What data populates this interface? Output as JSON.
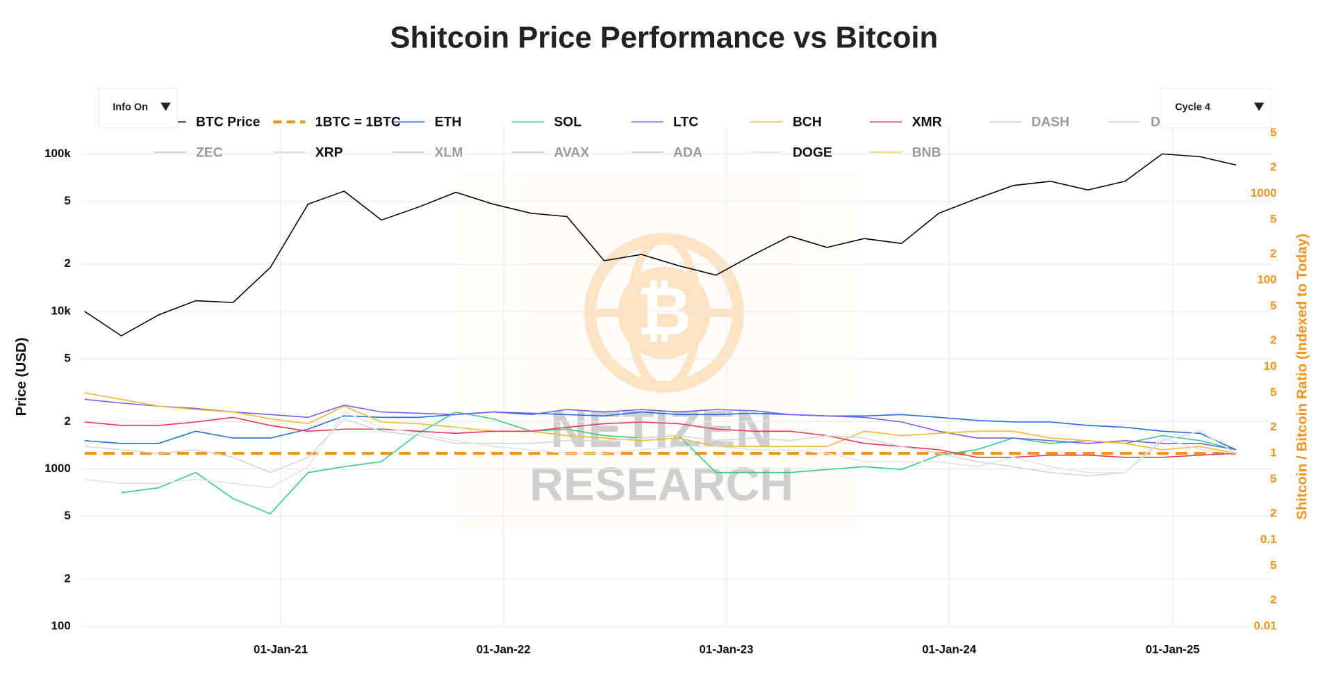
{
  "menus": [
    {
      "label": "Info On"
    },
    {
      "label": "Cycle 4"
    }
  ],
  "watermark": [
    "NETIZEN",
    "RESEARCH"
  ],
  "chart_data": {
    "type": "line",
    "title": "Shitcoin Price Performance vs Bitcoin",
    "ylabel": "Price (USD)",
    "y2label": "Shitcoin / Bitcoin Ratio (Indexed to Today)",
    "log_y": true,
    "log_y2": true,
    "grid": true,
    "x": [
      "2020-02-15",
      "2020-04-15",
      "2020-06-15",
      "2020-08-15",
      "2020-10-15",
      "2020-12-15",
      "2021-02-15",
      "2021-04-15",
      "2021-06-15",
      "2021-08-15",
      "2021-10-15",
      "2021-12-15",
      "2022-02-15",
      "2022-04-15",
      "2022-06-15",
      "2022-08-15",
      "2022-10-15",
      "2022-12-15",
      "2023-02-15",
      "2023-04-15",
      "2023-06-15",
      "2023-08-15",
      "2023-10-15",
      "2023-12-15",
      "2024-02-15",
      "2024-04-15",
      "2024-06-15",
      "2024-08-15",
      "2024-10-15",
      "2024-12-15",
      "2025-02-15",
      "2025-04-15"
    ],
    "xlim": [
      "2020-02-10",
      "2025-06-15"
    ],
    "xticks": [
      {
        "value": "2021-01-01",
        "label": "01-Jan-21"
      },
      {
        "value": "2022-01-01",
        "label": "01-Jan-22"
      },
      {
        "value": "2023-01-01",
        "label": "01-Jan-23"
      },
      {
        "value": "2024-01-01",
        "label": "01-Jan-24"
      },
      {
        "value": "2025-01-01",
        "label": "01-Jan-25"
      }
    ],
    "ylim": [
      100,
      150000
    ],
    "yticks": [
      100,
      {
        "value": 200,
        "label": "2"
      },
      {
        "value": 500,
        "label": "5"
      },
      1000,
      {
        "value": 2000,
        "label": "2"
      },
      {
        "value": 5000,
        "label": "5"
      },
      {
        "value": 10000,
        "label": "10k"
      },
      {
        "value": 20000,
        "label": "2"
      },
      {
        "value": 50000,
        "label": "5"
      },
      {
        "value": 100000,
        "label": "100k"
      }
    ],
    "y2lim": [
      0.01,
      6000
    ],
    "y2ticks": [
      0.01,
      {
        "value": 0.02,
        "label": "2"
      },
      {
        "value": 0.05,
        "label": "5"
      },
      0.1,
      {
        "value": 0.2,
        "label": "2"
      },
      {
        "value": 0.5,
        "label": "5"
      },
      1,
      2,
      5,
      10,
      {
        "value": 20,
        "label": "2"
      },
      {
        "value": 50,
        "label": "5"
      },
      100,
      {
        "value": 200,
        "label": "2"
      },
      {
        "value": 500,
        "label": "5"
      },
      1000,
      {
        "value": 2000,
        "label": "2"
      },
      {
        "value": 5000,
        "label": "5"
      }
    ],
    "series": [
      {
        "name": "BTC Price",
        "color": "#000000",
        "axis": "y",
        "values": [
          10000,
          7000,
          9500,
          11700,
          11400,
          19000,
          48000,
          58000,
          38000,
          46000,
          57000,
          48000,
          42000,
          40000,
          21000,
          23000,
          19500,
          17000,
          23000,
          30000,
          25500,
          29000,
          27000,
          42000,
          52000,
          63000,
          67000,
          59000,
          67000,
          100000,
          96000,
          85000
        ]
      },
      {
        "name": "1BTC = 1BTC",
        "color": "#f7931a",
        "axis": "y2",
        "dash": "dash",
        "values": [
          1,
          1,
          1,
          1,
          1,
          1,
          1,
          1,
          1,
          1,
          1,
          1,
          1,
          1,
          1,
          1,
          1,
          1,
          1,
          1,
          1,
          1,
          1,
          1,
          1,
          1,
          1,
          1,
          1,
          1,
          1,
          1
        ]
      },
      {
        "name": "ETH",
        "color": "#1f6fe0",
        "axis": "y2",
        "values": [
          1.4,
          1.3,
          1.3,
          1.8,
          1.5,
          1.5,
          1.9,
          2.7,
          2.6,
          2.6,
          2.8,
          3.0,
          2.9,
          2.8,
          2.7,
          3.0,
          2.8,
          2.8,
          2.9,
          2.8,
          2.7,
          2.7,
          2.8,
          2.6,
          2.4,
          2.3,
          2.3,
          2.1,
          2.0,
          1.8,
          1.7,
          1.1
        ]
      },
      {
        "name": "SOL",
        "color": "#2fcf8a",
        "axis": "y2",
        "values": [
          null,
          0.35,
          0.4,
          0.6,
          0.3,
          0.2,
          0.6,
          0.7,
          0.8,
          1.7,
          3.0,
          2.5,
          1.8,
          1.9,
          1.6,
          1.5,
          1.6,
          0.6,
          0.6,
          0.6,
          0.65,
          0.7,
          0.65,
          0.95,
          1.1,
          1.5,
          1.3,
          1.4,
          1.3,
          1.6,
          1.4,
          1.1
        ]
      },
      {
        "name": "LTC",
        "color": "#7b5cf0",
        "axis": "y2",
        "values": [
          4.2,
          3.8,
          3.5,
          3.3,
          3.0,
          2.8,
          2.6,
          3.6,
          3.0,
          2.9,
          2.8,
          3.0,
          2.8,
          3.2,
          3.0,
          3.2,
          3.0,
          3.2,
          3.1,
          2.8,
          2.7,
          2.6,
          2.3,
          1.8,
          1.5,
          1.5,
          1.4,
          1.3,
          1.4,
          1.3,
          1.3,
          1.1
        ]
      },
      {
        "name": "BCH",
        "color": "#f5b82e",
        "axis": "y2",
        "values": [
          5,
          4.2,
          3.5,
          3.2,
          3.0,
          2.5,
          2.2,
          3.5,
          2.3,
          2.2,
          2.0,
          1.8,
          1.8,
          1.6,
          1.5,
          1.4,
          1.5,
          1.2,
          1.2,
          1.2,
          1.2,
          1.8,
          1.6,
          1.7,
          1.8,
          1.8,
          1.5,
          1.4,
          1.3,
          1.1,
          1.2,
          1.0
        ]
      },
      {
        "name": "XMR",
        "color": "#e8365a",
        "axis": "y2",
        "values": [
          2.3,
          2.1,
          2.1,
          2.3,
          2.6,
          2.1,
          1.8,
          1.9,
          1.9,
          1.8,
          1.7,
          1.8,
          1.8,
          2.0,
          2.2,
          2.3,
          2.2,
          1.9,
          1.8,
          1.8,
          1.6,
          1.3,
          1.2,
          1.1,
          0.9,
          0.9,
          0.95,
          0.95,
          0.9,
          0.9,
          0.95,
          1.0
        ]
      },
      {
        "name": "DASH",
        "color": "#cccccc",
        "axis": "y2",
        "visible": false
      },
      {
        "name": "DOT",
        "color": "#cccccc",
        "axis": "y2",
        "visible": false
      },
      {
        "name": "ZEC",
        "color": "#cccccc",
        "axis": "y2",
        "visible": false
      },
      {
        "name": "XRP",
        "color": "#d6d6d6",
        "axis": "y2",
        "values": [
          1.2,
          1.1,
          1.0,
          1.1,
          0.9,
          0.6,
          0.9,
          2.5,
          1.8,
          1.6,
          1.3,
          1.3,
          1.3,
          1.4,
          1.4,
          1.5,
          1.6,
          1.4,
          1.5,
          1.4,
          1.6,
          1.5,
          1.2,
          1.0,
          0.8,
          0.7,
          0.6,
          0.55,
          0.6,
          1.4,
          1.8,
          1.0
        ]
      },
      {
        "name": "XLM",
        "color": "#cccccc",
        "axis": "y2",
        "visible": false
      },
      {
        "name": "AVAX",
        "color": "#cccccc",
        "axis": "y2",
        "visible": false
      },
      {
        "name": "ADA",
        "color": "#cccccc",
        "axis": "y2",
        "visible": false
      },
      {
        "name": "DOGE",
        "color": "#e3e3e3",
        "axis": "y2",
        "values": [
          0.5,
          0.45,
          0.45,
          0.5,
          0.45,
          0.4,
          0.7,
          3.0,
          2.0,
          1.7,
          1.4,
          1.2,
          1.1,
          1.0,
          1.0,
          1.1,
          1.2,
          1.2,
          1.1,
          1.1,
          1.0,
          0.8,
          0.8,
          0.8,
          0.7,
          0.9,
          0.7,
          0.6,
          0.6,
          1.5,
          1.1,
          1.0
        ]
      },
      {
        "name": "BNB",
        "color": "#f5d76e",
        "axis": "y2",
        "visible": false
      }
    ]
  }
}
